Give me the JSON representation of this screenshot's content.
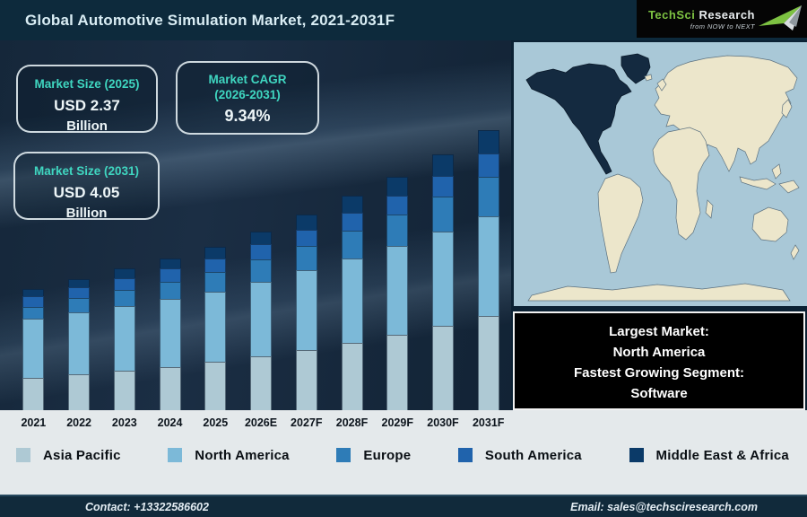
{
  "header": {
    "title": "Global Automotive Simulation Market, 2021-2031F",
    "logo": {
      "brand_primary": "TechSci",
      "brand_secondary": "Research",
      "tagline": "from NOW to NEXT"
    }
  },
  "stats": {
    "boxes": [
      {
        "label": "Market Size (2025)",
        "value": "USD 2.37",
        "unit": "Billion"
      },
      {
        "label_line1": "Market CAGR",
        "label_line2": "(2026-2031)",
        "value": "9.34%"
      },
      {
        "label": "Market Size (2031)",
        "value": "USD 4.05",
        "unit": "Billion"
      }
    ]
  },
  "chart_data": {
    "type": "bar",
    "stacked": true,
    "title": "Global Automotive Simulation Market, 2021-2031F",
    "unit": "USD Billion",
    "legend_position": "bottom",
    "categories": [
      "2021",
      "2022",
      "2023",
      "2024",
      "2025",
      "2026E",
      "2027F",
      "2028F",
      "2029F",
      "2030F",
      "2031F"
    ],
    "series": [
      {
        "name": "Asia Pacific",
        "color": "#aec9d4",
        "values": [
          0.47,
          0.52,
          0.57,
          0.63,
          0.7,
          0.78,
          0.87,
          0.98,
          1.09,
          1.22,
          1.36
        ]
      },
      {
        "name": "North America",
        "color": "#7cb9d8",
        "values": [
          0.85,
          0.89,
          0.94,
          0.98,
          1.02,
          1.08,
          1.15,
          1.22,
          1.29,
          1.36,
          1.44
        ]
      },
      {
        "name": "Europe",
        "color": "#2e7cb7",
        "values": [
          0.18,
          0.21,
          0.23,
          0.25,
          0.28,
          0.32,
          0.36,
          0.4,
          0.45,
          0.51,
          0.58
        ]
      },
      {
        "name": "South America",
        "color": "#2063ac",
        "values": [
          0.15,
          0.16,
          0.17,
          0.19,
          0.2,
          0.22,
          0.23,
          0.26,
          0.28,
          0.3,
          0.33
        ]
      },
      {
        "name": "Middle East & Africa",
        "color": "#0b3a68",
        "values": [
          0.11,
          0.12,
          0.14,
          0.15,
          0.17,
          0.19,
          0.22,
          0.24,
          0.27,
          0.31,
          0.34
        ]
      }
    ],
    "totals_estimated": [
      1.77,
      1.9,
      2.05,
      2.21,
      2.37,
      2.59,
      2.83,
      3.1,
      3.39,
      3.7,
      4.05
    ]
  },
  "map": {
    "highlighted_region": "North America",
    "ocean_color": "#a9c8d7",
    "land_color": "#ece6cb",
    "highlight_color": "#142a40"
  },
  "callout": {
    "lines": [
      "Largest Market:",
      "North America",
      "Fastest Growing Segment:",
      "Software"
    ]
  },
  "footer": {
    "contact": "Contact: +13322586602",
    "email": "Email: sales@techsciresearch.com"
  },
  "colors": {
    "accent_teal": "#3fd6c0",
    "brand_green": "#7dc242",
    "header_bg": "#0d2a3c",
    "chart_bg": "#182a3e",
    "band_bg": "#e4e9eb",
    "footer_bg": "#112a3b"
  }
}
